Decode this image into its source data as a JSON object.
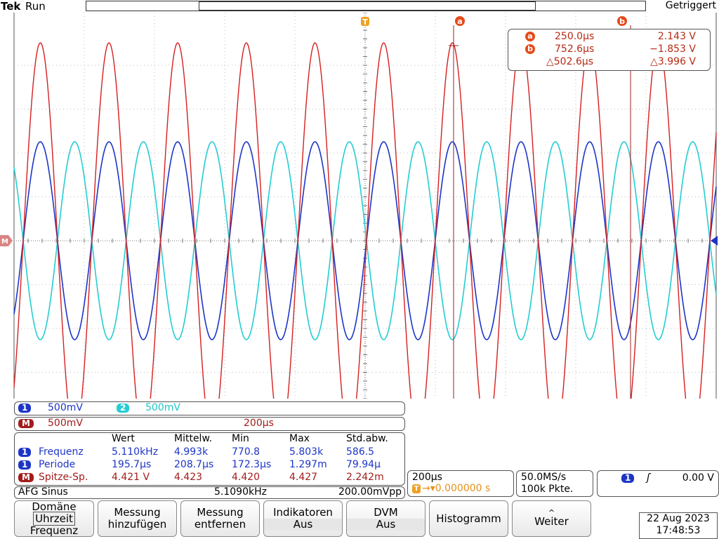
{
  "header": {
    "brand": "Tek",
    "run_state": "Run",
    "trigger_status": "Getriggert",
    "trigger_marker": "T",
    "cursor_a_label": "a",
    "cursor_b_label": "b"
  },
  "cursors": {
    "a_label": "a",
    "b_label": "b",
    "a_time": "250.0µs",
    "a_value": "2.143 V",
    "b_time": "752.6µs",
    "b_value": "−1.853 V",
    "delta_time": "△502.6µs",
    "delta_value": "△3.996 V"
  },
  "channels": {
    "ch1_badge": "1",
    "ch1_scale": "500mV",
    "ch2_badge": "2",
    "ch2_scale": "500mV",
    "math_badge": "M",
    "math_scale": "500mV",
    "math_timebase": "200µs",
    "math_marker": "M",
    "colors": {
      "ch1": "#1d35c7",
      "ch2": "#24cdd3",
      "math": "#d61f1f"
    }
  },
  "measurements": {
    "headers": [
      "Wert",
      "Mittelw.",
      "Min",
      "Max",
      "Std.abw."
    ],
    "rows": [
      {
        "badge": "1",
        "name": "Frequenz",
        "values": [
          "5.110kHz",
          "4.993k",
          "770.8",
          "5.803k",
          "586.5"
        ]
      },
      {
        "badge": "1",
        "name": "Periode",
        "values": [
          "195.7µs",
          "208.7µs",
          "172.3µs",
          "1.297m",
          "79.94µ"
        ]
      },
      {
        "badge": "M",
        "name": "Spitze-Sp.",
        "values": [
          "4.421 V",
          "4.423",
          "4.420",
          "4.427",
          "2.242m"
        ]
      }
    ]
  },
  "afg": {
    "label": "AFG Sinus",
    "frequency": "5.1090kHz",
    "amplitude": "200.00mVpp"
  },
  "timebase": {
    "scale": "200µs",
    "position_icon": "T",
    "position": "→▾0.000000 s"
  },
  "acquisition": {
    "rate": "50.0MS/s",
    "points": "100k Pkte."
  },
  "trigger": {
    "source_badge": "1",
    "slope_icon": "rising-edge-icon",
    "slope_glyph": "ʃ",
    "level": "0.00 V"
  },
  "menu": {
    "domain_title": "Domäne",
    "domain_selected": "Uhrzeit",
    "domain_other": "Frequenz",
    "add_measure_1": "Messung",
    "add_measure_2": "hinzufügen",
    "remove_measure_1": "Messung",
    "remove_measure_2": "entfernen",
    "indicators_1": "Indikatoren",
    "indicators_2": "Aus",
    "dvm_1": "DVM",
    "dvm_2": "Aus",
    "histogram": "Histogramm",
    "more_arrow": "^",
    "more": "Weiter"
  },
  "clock": {
    "date": "22 Aug 2023",
    "time": "17:48:53"
  }
}
